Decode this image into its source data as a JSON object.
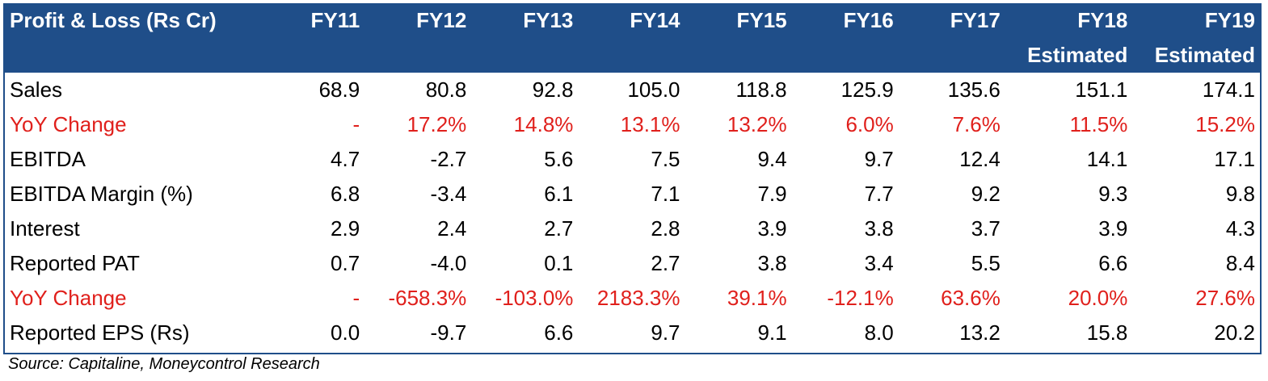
{
  "table": {
    "header_title": "Profit & Loss (Rs Cr)",
    "columns": [
      "FY11",
      "FY12",
      "FY13",
      "FY14",
      "FY15",
      "FY16",
      "FY17",
      "FY18",
      "FY19"
    ],
    "subheader": [
      "",
      "",
      "",
      "",
      "",
      "",
      "",
      "Estimated",
      "Estimated"
    ],
    "rows": [
      {
        "label": "Sales",
        "values": [
          "68.9",
          "80.8",
          "92.8",
          "105.0",
          "118.8",
          "125.9",
          "135.6",
          "151.1",
          "174.1"
        ],
        "highlight": false
      },
      {
        "label": "YoY Change",
        "values": [
          "-",
          "17.2%",
          "14.8%",
          "13.1%",
          "13.2%",
          "6.0%",
          "7.6%",
          "11.5%",
          "15.2%"
        ],
        "highlight": true
      },
      {
        "label": "EBITDA",
        "values": [
          "4.7",
          "-2.7",
          "5.6",
          "7.5",
          "9.4",
          "9.7",
          "12.4",
          "14.1",
          "17.1"
        ],
        "highlight": false
      },
      {
        "label": "EBITDA Margin (%)",
        "values": [
          "6.8",
          "-3.4",
          "6.1",
          "7.1",
          "7.9",
          "7.7",
          "9.2",
          "9.3",
          "9.8"
        ],
        "highlight": false
      },
      {
        "label": "Interest",
        "values": [
          "2.9",
          "2.4",
          "2.7",
          "2.8",
          "3.9",
          "3.8",
          "3.7",
          "3.9",
          "4.3"
        ],
        "highlight": false
      },
      {
        "label": "Reported PAT",
        "values": [
          "0.7",
          "-4.0",
          "0.1",
          "2.7",
          "3.8",
          "3.4",
          "5.5",
          "6.6",
          "8.4"
        ],
        "highlight": false
      },
      {
        "label": "YoY Change",
        "values": [
          "-",
          "-658.3%",
          "-103.0%",
          "2183.3%",
          "39.1%",
          "-12.1%",
          "63.6%",
          "20.0%",
          "27.6%"
        ],
        "highlight": true
      },
      {
        "label": "Reported EPS (Rs)",
        "values": [
          "0.0",
          "-9.7",
          "6.6",
          "9.7",
          "9.1",
          "8.0",
          "13.2",
          "15.8",
          "20.2"
        ],
        "highlight": false
      }
    ]
  },
  "source": "Source: Capitaline, Moneycontrol Research",
  "colors": {
    "header_bg": "#1f4e89",
    "header_text": "#ffffff",
    "highlight_text": "#e0201c",
    "body_text": "#000000"
  }
}
